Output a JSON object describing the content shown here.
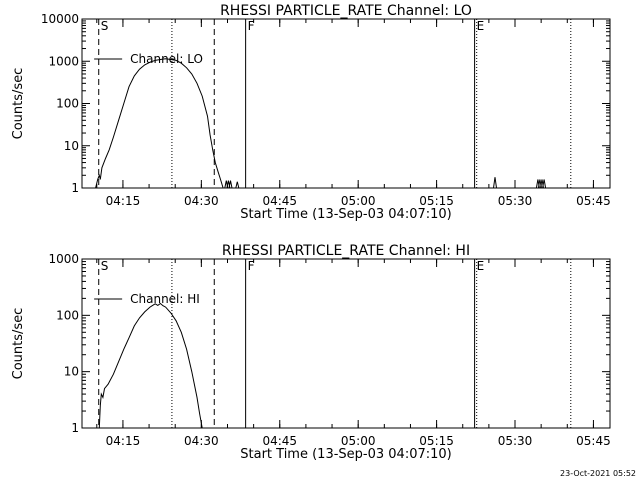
{
  "footer": {
    "timestamp": "23-Oct-2021 05:52"
  },
  "colors": {
    "foreground": "#000000",
    "background": "#ffffff"
  },
  "chart_data": [
    {
      "type": "line",
      "title": "RHESSI PARTICLE_RATE Channel: LO",
      "xlabel": "Start Time (13-Sep-03 04:07:10)",
      "ylabel": "Counts/sec",
      "y_scale": "log",
      "ylim": [
        1,
        10000
      ],
      "xlim_minutes": [
        0,
        101
      ],
      "y_ticks": [
        {
          "value": 1,
          "label": "1"
        },
        {
          "value": 10,
          "label": "10"
        },
        {
          "value": 100,
          "label": "100"
        },
        {
          "value": 1000,
          "label": "1000"
        },
        {
          "value": 10000,
          "label": "10000"
        }
      ],
      "x_ticks": [
        {
          "minute": 7.83,
          "label": "04:15"
        },
        {
          "minute": 22.83,
          "label": "04:30"
        },
        {
          "minute": 37.83,
          "label": "04:45"
        },
        {
          "minute": 52.83,
          "label": "05:00"
        },
        {
          "minute": 67.83,
          "label": "05:15"
        },
        {
          "minute": 82.83,
          "label": "05:30"
        },
        {
          "minute": 97.83,
          "label": "05:45"
        }
      ],
      "legend": "Channel: LO",
      "markers": [
        {
          "minute": 3.2,
          "style": "dashed",
          "label": "S"
        },
        {
          "minute": 17.2,
          "style": "dotted",
          "label": ""
        },
        {
          "minute": 25.3,
          "style": "dashed",
          "label": ""
        },
        {
          "minute": 31.3,
          "style": "solid",
          "label": "F"
        },
        {
          "minute": 75.1,
          "style": "solid",
          "label": "E"
        },
        {
          "minute": 75.5,
          "style": "dotted",
          "label": ""
        },
        {
          "minute": 93.5,
          "style": "dotted",
          "label": ""
        }
      ],
      "series": [
        {
          "name": "Channel: LO",
          "points": [
            [
              2.6,
              1
            ],
            [
              3.0,
              1.6
            ],
            [
              3.3,
              2
            ],
            [
              3.5,
              1.6
            ],
            [
              3.8,
              3
            ],
            [
              4.5,
              5
            ],
            [
              5.2,
              8
            ],
            [
              6.0,
              16
            ],
            [
              7.0,
              40
            ],
            [
              8.0,
              100
            ],
            [
              9.0,
              250
            ],
            [
              10.0,
              450
            ],
            [
              11.0,
              650
            ],
            [
              12.0,
              820
            ],
            [
              13.0,
              950
            ],
            [
              14.0,
              1050
            ],
            [
              15.0,
              1100
            ],
            [
              16.0,
              1150
            ],
            [
              17.0,
              1100
            ],
            [
              18.0,
              1050
            ],
            [
              19.0,
              900
            ],
            [
              20.0,
              700
            ],
            [
              21.0,
              500
            ],
            [
              22.0,
              300
            ],
            [
              23.0,
              150
            ],
            [
              24.0,
              50
            ],
            [
              24.5,
              18
            ],
            [
              25.0,
              8
            ],
            [
              25.5,
              4
            ],
            [
              26.0,
              2.5
            ],
            [
              26.5,
              1.6
            ],
            [
              27.0,
              1
            ]
          ]
        }
      ],
      "spikes": [
        {
          "minute": 27.6,
          "value": 1.5
        },
        {
          "minute": 28.0,
          "value": 1.5
        },
        {
          "minute": 28.4,
          "value": 1.5
        },
        {
          "minute": 29.7,
          "value": 1.4
        },
        {
          "minute": 79.0,
          "value": 1.8
        },
        {
          "minute": 87.2,
          "value": 1.6
        },
        {
          "minute": 87.6,
          "value": 1.6
        },
        {
          "minute": 88.0,
          "value": 1.6
        },
        {
          "minute": 88.4,
          "value": 1.6
        }
      ]
    },
    {
      "type": "line",
      "title": "RHESSI PARTICLE_RATE Channel: HI",
      "xlabel": "Start Time (13-Sep-03 04:07:10)",
      "ylabel": "Counts/sec",
      "y_scale": "log",
      "ylim": [
        1,
        1000
      ],
      "xlim_minutes": [
        0,
        101
      ],
      "y_ticks": [
        {
          "value": 1,
          "label": "1"
        },
        {
          "value": 10,
          "label": "10"
        },
        {
          "value": 100,
          "label": "100"
        },
        {
          "value": 1000,
          "label": "1000"
        }
      ],
      "x_ticks": [
        {
          "minute": 7.83,
          "label": "04:15"
        },
        {
          "minute": 22.83,
          "label": "04:30"
        },
        {
          "minute": 37.83,
          "label": "04:45"
        },
        {
          "minute": 52.83,
          "label": "05:00"
        },
        {
          "minute": 67.83,
          "label": "05:15"
        },
        {
          "minute": 82.83,
          "label": "05:30"
        },
        {
          "minute": 97.83,
          "label": "05:45"
        }
      ],
      "legend": "Channel: HI",
      "markers": [
        {
          "minute": 3.2,
          "style": "dashed",
          "label": "S"
        },
        {
          "minute": 17.2,
          "style": "dotted",
          "label": ""
        },
        {
          "minute": 25.3,
          "style": "dashed",
          "label": ""
        },
        {
          "minute": 31.3,
          "style": "solid",
          "label": "F"
        },
        {
          "minute": 75.1,
          "style": "solid",
          "label": "E"
        },
        {
          "minute": 75.5,
          "style": "dotted",
          "label": ""
        },
        {
          "minute": 93.5,
          "style": "dotted",
          "label": ""
        }
      ],
      "series": [
        {
          "name": "Channel: HI",
          "points": [
            [
              3.3,
              1
            ],
            [
              3.5,
              2.5
            ],
            [
              3.7,
              4
            ],
            [
              4.0,
              3.5
            ],
            [
              4.3,
              5
            ],
            [
              5.0,
              6
            ],
            [
              6.0,
              9
            ],
            [
              7.0,
              15
            ],
            [
              8.0,
              25
            ],
            [
              9.0,
              40
            ],
            [
              10.0,
              65
            ],
            [
              11.0,
              90
            ],
            [
              12.0,
              115
            ],
            [
              13.0,
              140
            ],
            [
              13.5,
              150
            ],
            [
              14.0,
              160
            ],
            [
              14.5,
              150
            ],
            [
              15.0,
              162
            ],
            [
              15.5,
              148
            ],
            [
              16.0,
              140
            ],
            [
              17.0,
              110
            ],
            [
              18.0,
              80
            ],
            [
              19.0,
              50
            ],
            [
              20.0,
              25
            ],
            [
              21.0,
              10
            ],
            [
              22.0,
              3.5
            ],
            [
              22.5,
              1.8
            ],
            [
              23.0,
              1
            ]
          ]
        }
      ],
      "spikes": []
    }
  ]
}
